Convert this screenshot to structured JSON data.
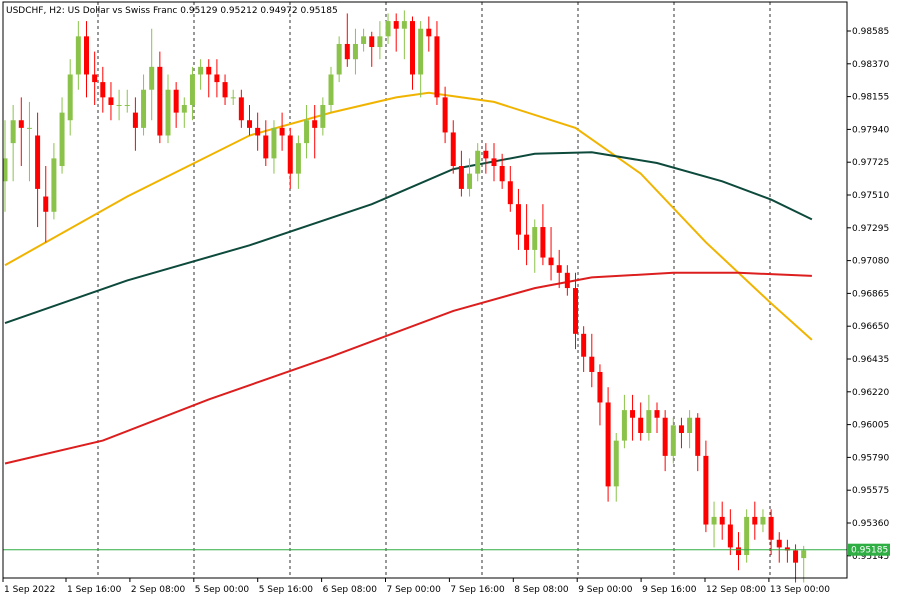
{
  "header": {
    "symbol": "USDCHF",
    "timeframe": "H2",
    "description": "US Dollar vs Swiss Franc",
    "ohlc": "0.95129 0.95212 0.94972 0.95185"
  },
  "colors": {
    "bull": "#8bc34a",
    "bear": "#ff0000",
    "ma_fast": "#f0b400",
    "ma_mid": "#0d4a3c",
    "ma_slow": "#dc1e1e",
    "price_line": "#2fae44",
    "price_tag_bg": "#2fae44",
    "grid_vertical": "#000000",
    "axis": "#000000"
  },
  "chart_data": {
    "type": "candlestick",
    "y_ticks": [
      "0.98585",
      "0.98370",
      "0.98155",
      "0.97940",
      "0.97725",
      "0.97510",
      "0.97295",
      "0.97080",
      "0.96865",
      "0.96650",
      "0.96435",
      "0.96220",
      "0.96005",
      "0.95790",
      "0.95575",
      "0.95360",
      "0.95145"
    ],
    "ylim": [
      0.9495,
      0.9875
    ],
    "x_labels": [
      "1 Sep 2022",
      "1 Sep 16:00",
      "2 Sep 08:00",
      "5 Sep 00:00",
      "5 Sep 16:00",
      "6 Sep 08:00",
      "7 Sep 00:00",
      "7 Sep 16:00",
      "8 Sep 08:00",
      "9 Sep 00:00",
      "9 Sep 16:00",
      "12 Sep 08:00",
      "13 Sep 00:00"
    ],
    "current_price": "0.95185",
    "candles": [
      [
        0.976,
        0.98,
        0.974,
        0.9775
      ],
      [
        0.9785,
        0.981,
        0.976,
        0.98
      ],
      [
        0.98,
        0.9815,
        0.977,
        0.9795
      ],
      [
        0.9795,
        0.9812,
        0.976,
        0.9795
      ],
      [
        0.979,
        0.9805,
        0.973,
        0.9755
      ],
      [
        0.975,
        0.977,
        0.972,
        0.974
      ],
      [
        0.974,
        0.9785,
        0.9735,
        0.9775
      ],
      [
        0.977,
        0.9815,
        0.9765,
        0.9805
      ],
      [
        0.98,
        0.984,
        0.979,
        0.983
      ],
      [
        0.983,
        0.9865,
        0.982,
        0.9855
      ],
      [
        0.9855,
        0.9865,
        0.9815,
        0.983
      ],
      [
        0.983,
        0.9845,
        0.981,
        0.9825
      ],
      [
        0.9825,
        0.9835,
        0.9805,
        0.9815
      ],
      [
        0.9815,
        0.9825,
        0.98,
        0.981
      ],
      [
        0.981,
        0.982,
        0.98,
        0.981
      ],
      [
        0.981,
        0.982,
        0.9805,
        0.981
      ],
      [
        0.9805,
        0.9815,
        0.978,
        0.9795
      ],
      [
        0.9795,
        0.983,
        0.979,
        0.982
      ],
      [
        0.982,
        0.986,
        0.98,
        0.9835
      ],
      [
        0.9835,
        0.9845,
        0.9785,
        0.979
      ],
      [
        0.979,
        0.983,
        0.9785,
        0.982
      ],
      [
        0.982,
        0.9825,
        0.9795,
        0.9805
      ],
      [
        0.9805,
        0.9815,
        0.9795,
        0.981
      ],
      [
        0.981,
        0.9835,
        0.98,
        0.983
      ],
      [
        0.983,
        0.984,
        0.982,
        0.9835
      ],
      [
        0.9835,
        0.984,
        0.9815,
        0.983
      ],
      [
        0.983,
        0.984,
        0.9815,
        0.9825
      ],
      [
        0.9825,
        0.983,
        0.981,
        0.9815
      ],
      [
        0.9815,
        0.982,
        0.981,
        0.9815
      ],
      [
        0.9815,
        0.982,
        0.9795,
        0.98
      ],
      [
        0.98,
        0.981,
        0.979,
        0.9795
      ],
      [
        0.9795,
        0.9805,
        0.978,
        0.979
      ],
      [
        0.979,
        0.98,
        0.977,
        0.9775
      ],
      [
        0.9775,
        0.98,
        0.9765,
        0.9795
      ],
      [
        0.9795,
        0.9805,
        0.978,
        0.979
      ],
      [
        0.979,
        0.9795,
        0.9755,
        0.9765
      ],
      [
        0.9765,
        0.979,
        0.9755,
        0.9785
      ],
      [
        0.9785,
        0.981,
        0.9775,
        0.98
      ],
      [
        0.98,
        0.981,
        0.9775,
        0.9795
      ],
      [
        0.9795,
        0.9815,
        0.979,
        0.981
      ],
      [
        0.981,
        0.9835,
        0.9805,
        0.983
      ],
      [
        0.983,
        0.9855,
        0.9825,
        0.985
      ],
      [
        0.985,
        0.987,
        0.9835,
        0.984
      ],
      [
        0.984,
        0.986,
        0.983,
        0.985
      ],
      [
        0.985,
        0.986,
        0.9845,
        0.9855
      ],
      [
        0.9855,
        0.9858,
        0.9835,
        0.9848
      ],
      [
        0.9848,
        0.9865,
        0.984,
        0.9855
      ],
      [
        0.9855,
        0.987,
        0.985,
        0.9865
      ],
      [
        0.9865,
        0.987,
        0.9845,
        0.986
      ],
      [
        0.986,
        0.9872,
        0.984,
        0.9865
      ],
      [
        0.9865,
        0.9868,
        0.982,
        0.983
      ],
      [
        0.983,
        0.9865,
        0.9815,
        0.986
      ],
      [
        0.986,
        0.9868,
        0.9845,
        0.9855
      ],
      [
        0.9855,
        0.9865,
        0.981,
        0.9815
      ],
      [
        0.9815,
        0.9822,
        0.9785,
        0.9792
      ],
      [
        0.9792,
        0.98,
        0.9765,
        0.977
      ],
      [
        0.977,
        0.978,
        0.975,
        0.9755
      ],
      [
        0.9755,
        0.9775,
        0.975,
        0.9765
      ],
      [
        0.9765,
        0.9785,
        0.976,
        0.978
      ],
      [
        0.978,
        0.9785,
        0.9765,
        0.9775
      ],
      [
        0.9775,
        0.9785,
        0.976,
        0.977
      ],
      [
        0.977,
        0.9778,
        0.9755,
        0.976
      ],
      [
        0.976,
        0.977,
        0.974,
        0.9745
      ],
      [
        0.9745,
        0.9755,
        0.9715,
        0.9725
      ],
      [
        0.9725,
        0.9745,
        0.9705,
        0.9715
      ],
      [
        0.9715,
        0.9735,
        0.97,
        0.973
      ],
      [
        0.973,
        0.9745,
        0.9705,
        0.971
      ],
      [
        0.971,
        0.973,
        0.9695,
        0.9705
      ],
      [
        0.9705,
        0.9715,
        0.969,
        0.97
      ],
      [
        0.97,
        0.9705,
        0.9685,
        0.969
      ],
      [
        0.969,
        0.97,
        0.965,
        0.966
      ],
      [
        0.966,
        0.9665,
        0.9635,
        0.9645
      ],
      [
        0.9645,
        0.966,
        0.9625,
        0.9635
      ],
      [
        0.9635,
        0.964,
        0.96,
        0.9615
      ],
      [
        0.9615,
        0.9625,
        0.955,
        0.956
      ],
      [
        0.956,
        0.9595,
        0.955,
        0.959
      ],
      [
        0.959,
        0.962,
        0.9585,
        0.961
      ],
      [
        0.961,
        0.962,
        0.959,
        0.9605
      ],
      [
        0.9605,
        0.9615,
        0.959,
        0.9595
      ],
      [
        0.9595,
        0.962,
        0.959,
        0.961
      ],
      [
        0.961,
        0.9615,
        0.9595,
        0.9605
      ],
      [
        0.9605,
        0.961,
        0.957,
        0.958
      ],
      [
        0.958,
        0.9605,
        0.9575,
        0.96
      ],
      [
        0.96,
        0.9605,
        0.9585,
        0.9595
      ],
      [
        0.9595,
        0.961,
        0.9585,
        0.9605
      ],
      [
        0.9605,
        0.9608,
        0.957,
        0.958
      ],
      [
        0.958,
        0.959,
        0.953,
        0.9535
      ],
      [
        0.9535,
        0.955,
        0.952,
        0.954
      ],
      [
        0.954,
        0.955,
        0.9525,
        0.9535
      ],
      [
        0.9535,
        0.9545,
        0.9515,
        0.952
      ],
      [
        0.952,
        0.953,
        0.9505,
        0.9515
      ],
      [
        0.9515,
        0.9545,
        0.951,
        0.954
      ],
      [
        0.954,
        0.955,
        0.9525,
        0.9535
      ],
      [
        0.9535,
        0.9545,
        0.953,
        0.954
      ],
      [
        0.954,
        0.9545,
        0.9515,
        0.9525
      ],
      [
        0.9525,
        0.953,
        0.951,
        0.952
      ],
      [
        0.952,
        0.9525,
        0.951,
        0.9518
      ],
      [
        0.9518,
        0.9522,
        0.9497,
        0.951
      ],
      [
        0.9513,
        0.9521,
        0.9497,
        0.9518
      ]
    ],
    "moving_averages": [
      {
        "color_key": "ma_fast",
        "points": [
          [
            0,
            0.9705
          ],
          [
            15,
            0.975
          ],
          [
            30,
            0.979
          ],
          [
            40,
            0.9805
          ],
          [
            48,
            0.9815
          ],
          [
            52,
            0.9818
          ],
          [
            60,
            0.9812
          ],
          [
            70,
            0.9795
          ],
          [
            78,
            0.9765
          ],
          [
            86,
            0.972
          ],
          [
            94,
            0.968
          ],
          [
            99,
            0.9656
          ]
        ]
      },
      {
        "color_key": "ma_mid",
        "points": [
          [
            0,
            0.9667
          ],
          [
            15,
            0.9695
          ],
          [
            30,
            0.9718
          ],
          [
            45,
            0.9745
          ],
          [
            55,
            0.9768
          ],
          [
            65,
            0.9778
          ],
          [
            72,
            0.9779
          ],
          [
            80,
            0.9772
          ],
          [
            88,
            0.976
          ],
          [
            94,
            0.9748
          ],
          [
            99,
            0.9735
          ]
        ]
      },
      {
        "color_key": "ma_slow",
        "points": [
          [
            0,
            0.9575
          ],
          [
            12,
            0.959
          ],
          [
            25,
            0.9617
          ],
          [
            40,
            0.9645
          ],
          [
            55,
            0.9675
          ],
          [
            65,
            0.969
          ],
          [
            72,
            0.9697
          ],
          [
            82,
            0.97
          ],
          [
            90,
            0.97
          ],
          [
            99,
            0.9698
          ]
        ]
      }
    ]
  }
}
